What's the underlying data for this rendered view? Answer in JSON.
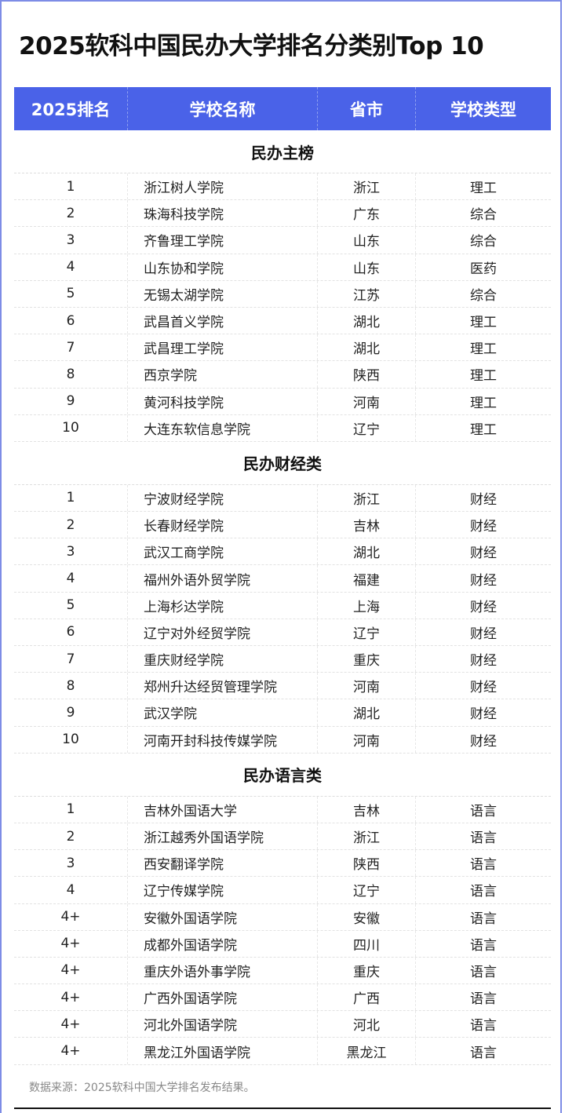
{
  "title": "2025软科中国民办大学排名分类别Top 10",
  "headers": [
    "2025排名",
    "学校名称",
    "省市",
    "学校类型"
  ],
  "sections": [
    {
      "name": "民办主榜",
      "rows": [
        [
          "1",
          "浙江树人学院",
          "浙江",
          "理工"
        ],
        [
          "2",
          "珠海科技学院",
          "广东",
          "综合"
        ],
        [
          "3",
          "齐鲁理工学院",
          "山东",
          "综合"
        ],
        [
          "4",
          "山东协和学院",
          "山东",
          "医药"
        ],
        [
          "5",
          "无锡太湖学院",
          "江苏",
          "综合"
        ],
        [
          "6",
          "武昌首义学院",
          "湖北",
          "理工"
        ],
        [
          "7",
          "武昌理工学院",
          "湖北",
          "理工"
        ],
        [
          "8",
          "西京学院",
          "陕西",
          "理工"
        ],
        [
          "9",
          "黄河科技学院",
          "河南",
          "理工"
        ],
        [
          "10",
          "大连东软信息学院",
          "辽宁",
          "理工"
        ]
      ]
    },
    {
      "name": "民办财经类",
      "rows": [
        [
          "1",
          "宁波财经学院",
          "浙江",
          "财经"
        ],
        [
          "2",
          "长春财经学院",
          "吉林",
          "财经"
        ],
        [
          "3",
          "武汉工商学院",
          "湖北",
          "财经"
        ],
        [
          "4",
          "福州外语外贸学院",
          "福建",
          "财经"
        ],
        [
          "5",
          "上海杉达学院",
          "上海",
          "财经"
        ],
        [
          "6",
          "辽宁对外经贸学院",
          "辽宁",
          "财经"
        ],
        [
          "7",
          "重庆财经学院",
          "重庆",
          "财经"
        ],
        [
          "8",
          "郑州升达经贸管理学院",
          "河南",
          "财经"
        ],
        [
          "9",
          "武汉学院",
          "湖北",
          "财经"
        ],
        [
          "10",
          "河南开封科技传媒学院",
          "河南",
          "财经"
        ]
      ]
    },
    {
      "name": "民办语言类",
      "rows": [
        [
          "1",
          "吉林外国语大学",
          "吉林",
          "语言"
        ],
        [
          "2",
          "浙江越秀外国语学院",
          "浙江",
          "语言"
        ],
        [
          "3",
          "西安翻译学院",
          "陕西",
          "语言"
        ],
        [
          "4",
          "辽宁传媒学院",
          "辽宁",
          "语言"
        ],
        [
          "4+",
          "安徽外国语学院",
          "安徽",
          "语言"
        ],
        [
          "4+",
          "成都外国语学院",
          "四川",
          "语言"
        ],
        [
          "4+",
          "重庆外语外事学院",
          "重庆",
          "语言"
        ],
        [
          "4+",
          "广西外国语学院",
          "广西",
          "语言"
        ],
        [
          "4+",
          "河北外国语学院",
          "河北",
          "语言"
        ],
        [
          "4+",
          "黑龙江外国语学院",
          "黑龙江",
          "语言"
        ]
      ]
    }
  ],
  "footer": "数据来源：2025软科中国大学排名发布结果。",
  "colors": {
    "header_bg": "#4a62e8",
    "frame": "#7d8ce6"
  }
}
